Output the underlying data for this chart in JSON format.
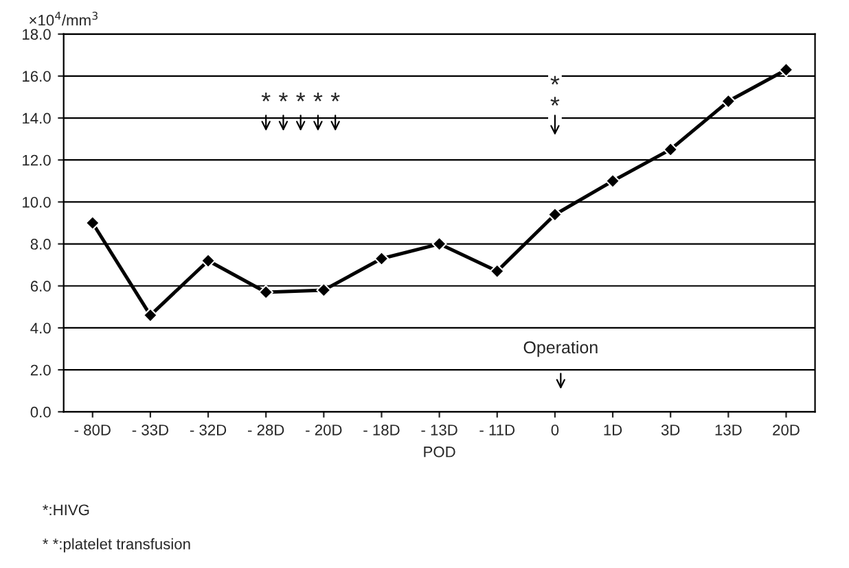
{
  "chart_data": {
    "type": "line",
    "ylabel": "×10$^{4}$/mm$^{3}$",
    "xlabel": "POD",
    "categories": [
      "- 80D",
      "- 33D",
      "- 32D",
      "- 28D",
      "- 20D",
      "- 18D",
      "- 13D",
      "- 11D",
      "0",
      "1D",
      "3D",
      "13D",
      "20D"
    ],
    "series": [
      {
        "color": "#000000",
        "values": [
          9.0,
          4.6,
          7.2,
          5.7,
          5.8,
          7.3,
          8.0,
          6.7,
          9.4,
          11.0,
          12.5,
          14.8,
          16.3
        ]
      }
    ],
    "ylim": [
      0,
      18
    ],
    "yticks": [
      {
        "value": 0,
        "label": "0.0"
      },
      {
        "value": 2,
        "label": "2.0"
      },
      {
        "value": 4,
        "label": "4.0"
      },
      {
        "value": 6,
        "label": "6.0"
      },
      {
        "value": 8,
        "label": "8.0"
      },
      {
        "value": 10,
        "label": "10.0"
      },
      {
        "value": 12,
        "label": "12.0"
      },
      {
        "value": 14,
        "label": "14.0"
      },
      {
        "value": 16,
        "label": "16.0"
      },
      {
        "value": 18,
        "label": "18.0"
      }
    ],
    "grid": "y",
    "marker": "diamond",
    "line_style": "solid",
    "legend": false,
    "annotations": [
      "*****",
      "**",
      "Operation",
      "*:HIVG",
      "* *:platelet transfusion"
    ]
  }
}
